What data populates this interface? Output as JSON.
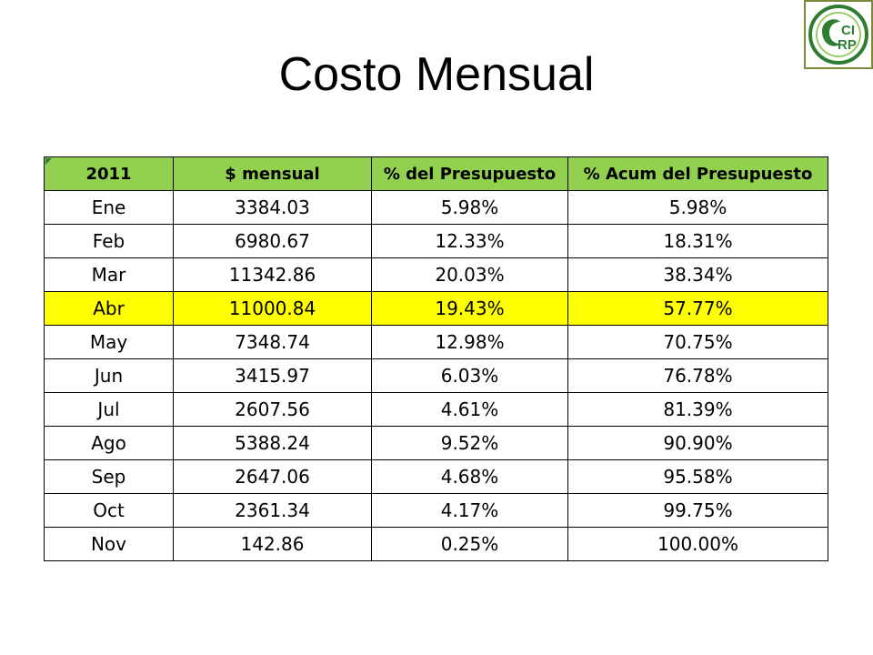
{
  "title": "Costo Mensual",
  "logo": {
    "text_top": "CI",
    "text_bottom": "RP",
    "color": "#2e7d32"
  },
  "table": {
    "headers": [
      "2011",
      "$ mensual",
      "% del Presupuesto",
      "% Acum del Presupuesto"
    ],
    "header_bg": "#92d050",
    "highlight_bg": "#ffff00",
    "rows": [
      {
        "month": "Ene",
        "monthly": "3384.03",
        "pct": "5.98%",
        "cum": "5.98%",
        "highlight": false
      },
      {
        "month": "Feb",
        "monthly": "6980.67",
        "pct": "12.33%",
        "cum": "18.31%",
        "highlight": false
      },
      {
        "month": "Mar",
        "monthly": "11342.86",
        "pct": "20.03%",
        "cum": "38.34%",
        "highlight": false
      },
      {
        "month": "Abr",
        "monthly": "11000.84",
        "pct": "19.43%",
        "cum": "57.77%",
        "highlight": true
      },
      {
        "month": "May",
        "monthly": "7348.74",
        "pct": "12.98%",
        "cum": "70.75%",
        "highlight": false
      },
      {
        "month": "Jun",
        "monthly": "3415.97",
        "pct": "6.03%",
        "cum": "76.78%",
        "highlight": false
      },
      {
        "month": "Jul",
        "monthly": "2607.56",
        "pct": "4.61%",
        "cum": "81.39%",
        "highlight": false
      },
      {
        "month": "Ago",
        "monthly": "5388.24",
        "pct": "9.52%",
        "cum": "90.90%",
        "highlight": false
      },
      {
        "month": "Sep",
        "monthly": "2647.06",
        "pct": "4.68%",
        "cum": "95.58%",
        "highlight": false
      },
      {
        "month": "Oct",
        "monthly": "2361.34",
        "pct": "4.17%",
        "cum": "99.75%",
        "highlight": false
      },
      {
        "month": "Nov",
        "monthly": "142.86",
        "pct": "0.25%",
        "cum": "100.00%",
        "highlight": false
      }
    ]
  }
}
